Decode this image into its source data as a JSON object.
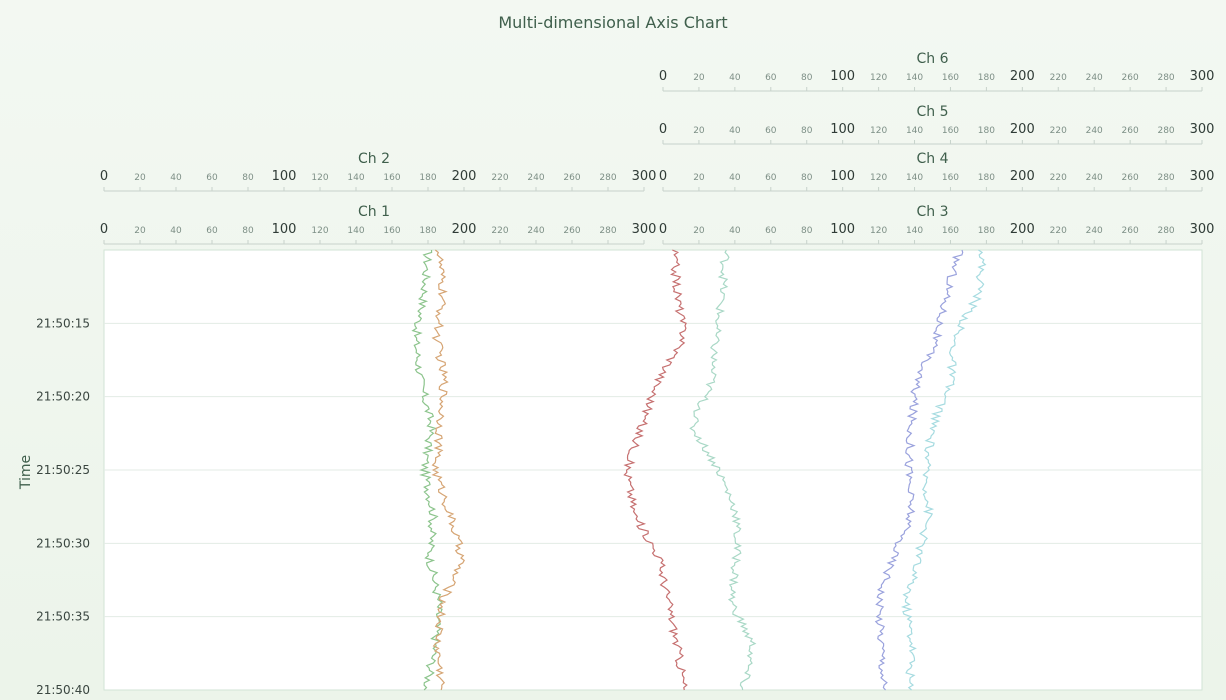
{
  "chart_data": {
    "type": "line",
    "title": "Multi-dimensional Axis Chart",
    "ylabel": "Time",
    "time_ticks": [
      "21:50:15",
      "21:50:20",
      "21:50:25",
      "21:50:30",
      "21:50:35",
      "21:50:40"
    ],
    "time_range": [
      "21:50:10",
      "21:50:40"
    ],
    "axis_range": [
      0,
      300
    ],
    "major_ticks": [
      "0",
      "100",
      "200",
      "300"
    ],
    "minor_ticks": [
      "20",
      "40",
      "60",
      "80",
      "120",
      "140",
      "160",
      "180",
      "220",
      "240",
      "260",
      "280"
    ],
    "axes": [
      {
        "name": "Ch 1",
        "column": "left",
        "row": 0
      },
      {
        "name": "Ch 2",
        "column": "left",
        "row": 1
      },
      {
        "name": "Ch 3",
        "column": "right",
        "row": 0
      },
      {
        "name": "Ch 4",
        "column": "right",
        "row": 1
      },
      {
        "name": "Ch 5",
        "column": "right",
        "row": 2
      },
      {
        "name": "Ch 6",
        "column": "right",
        "row": 3
      }
    ],
    "series": [
      {
        "axis": "Ch 1",
        "color": "#8cc48c",
        "values": [
          [
            0,
            180
          ],
          [
            3,
            178
          ],
          [
            6,
            173
          ],
          [
            9,
            176
          ],
          [
            12,
            182
          ],
          [
            15,
            178
          ],
          [
            18,
            183
          ],
          [
            21,
            181
          ],
          [
            24,
            186
          ],
          [
            27,
            184
          ],
          [
            30,
            179
          ],
          [
            33,
            175
          ],
          [
            36,
            181
          ],
          [
            39,
            178
          ],
          [
            42,
            172
          ]
        ]
      },
      {
        "axis": "Ch 2",
        "color": "#d6a574",
        "values": [
          [
            0,
            186
          ],
          [
            3,
            188
          ],
          [
            6,
            185
          ],
          [
            9,
            189
          ],
          [
            12,
            187
          ],
          [
            15,
            184
          ],
          [
            18,
            192
          ],
          [
            21,
            199
          ],
          [
            24,
            188
          ],
          [
            27,
            185
          ],
          [
            30,
            188
          ],
          [
            33,
            186
          ],
          [
            36,
            195
          ],
          [
            39,
            184
          ],
          [
            42,
            186
          ]
        ]
      },
      {
        "axis": "Ch 3",
        "color": "#c67070",
        "values": [
          [
            0,
            6
          ],
          [
            3,
            8
          ],
          [
            6,
            12
          ],
          [
            9,
            -3
          ],
          [
            12,
            -12
          ],
          [
            15,
            -20
          ],
          [
            18,
            -16
          ],
          [
            21,
            -2
          ],
          [
            24,
            3
          ],
          [
            27,
            8
          ],
          [
            30,
            12
          ],
          [
            33,
            14
          ],
          [
            36,
            15
          ],
          [
            39,
            14
          ],
          [
            42,
            8
          ]
        ]
      },
      {
        "axis": "Ch 4",
        "color": "#a9d8c6",
        "values": [
          [
            0,
            35
          ],
          [
            3,
            33
          ],
          [
            6,
            29
          ],
          [
            9,
            27
          ],
          [
            12,
            16
          ],
          [
            15,
            31
          ],
          [
            18,
            41
          ],
          [
            21,
            41
          ],
          [
            24,
            38
          ],
          [
            27,
            50
          ],
          [
            30,
            44
          ],
          [
            33,
            35
          ],
          [
            36,
            30
          ],
          [
            39,
            32
          ],
          [
            42,
            27
          ]
        ]
      },
      {
        "axis": "Ch 5",
        "color": "#9aa2dd",
        "values": [
          [
            0,
            165
          ],
          [
            3,
            158
          ],
          [
            6,
            152
          ],
          [
            9,
            141
          ],
          [
            12,
            138
          ],
          [
            15,
            137
          ],
          [
            18,
            138
          ],
          [
            21,
            128
          ],
          [
            24,
            120
          ],
          [
            27,
            122
          ],
          [
            30,
            123
          ],
          [
            33,
            137
          ],
          [
            36,
            146
          ],
          [
            39,
            143
          ],
          [
            42,
            142
          ]
        ]
      },
      {
        "axis": "Ch 6",
        "color": "#a6dbe0",
        "values": [
          [
            0,
            178
          ],
          [
            3,
            176
          ],
          [
            6,
            162
          ],
          [
            9,
            160
          ],
          [
            12,
            150
          ],
          [
            15,
            146
          ],
          [
            18,
            148
          ],
          [
            21,
            142
          ],
          [
            24,
            135
          ],
          [
            27,
            139
          ],
          [
            30,
            137
          ],
          [
            33,
            130
          ],
          [
            36,
            124
          ],
          [
            39,
            122
          ],
          [
            42,
            125
          ]
        ]
      }
    ]
  }
}
